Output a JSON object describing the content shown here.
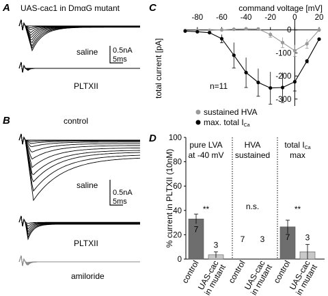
{
  "panels": {
    "a": {
      "letter": "A",
      "title": "UAS-cac1 in DmαG mutant",
      "saline_label": "saline",
      "pltx_label": "PLTXII",
      "scale_current": "0.5nA",
      "scale_time": "5ms"
    },
    "b": {
      "letter": "B",
      "title": "control",
      "saline_label": "saline",
      "pltx_label": "PLTXII",
      "amiloride_label": "amiloride",
      "scale_current": "0.5nA",
      "scale_time": "5ms"
    },
    "c": {
      "letter": "C",
      "n_label": "n=11"
    },
    "d": {
      "letter": "D"
    }
  },
  "colors": {
    "dark_bar": "#6e6e6e",
    "light_bar": "#c8c8c8",
    "grey_series": "#999999",
    "black_series": "#000000"
  },
  "chart_data": [
    {
      "type": "line",
      "xlabel": "command voltage [mV]",
      "ylabel": "total current [pA]",
      "xlim": [
        -90,
        20
      ],
      "ylim": [
        -330,
        20
      ],
      "xticks": [
        -80,
        -60,
        -40,
        -20,
        0,
        20
      ],
      "yticks": [
        0,
        -100,
        -200,
        -300
      ],
      "legend_position": "bottom-left",
      "series": [
        {
          "name": "sustained HVA",
          "x": [
            -90,
            -80,
            -70,
            -60,
            -50,
            -40,
            -30,
            -20,
            -10,
            0,
            10,
            20
          ],
          "y": [
            -2,
            -2,
            -2,
            0,
            3,
            5,
            4,
            -20,
            -55,
            -90,
            -60,
            0
          ],
          "err": [
            0,
            0,
            0,
            0,
            0,
            6,
            6,
            12,
            22,
            25,
            20,
            0
          ]
        },
        {
          "name": "max. total I",
          "name_subscript": "Ca",
          "x": [
            -90,
            -80,
            -70,
            -60,
            -50,
            -40,
            -30,
            -20,
            -10,
            0,
            10,
            20
          ],
          "y": [
            -5,
            -8,
            -12,
            -38,
            -110,
            -185,
            -228,
            -252,
            -250,
            -225,
            -135,
            -40
          ],
          "err": [
            0,
            0,
            0,
            18,
            55,
            65,
            60,
            70,
            65,
            40,
            8,
            0
          ]
        }
      ]
    },
    {
      "type": "bar",
      "ylabel": "% current in PLTXII (10nM)",
      "ylim": [
        0,
        100
      ],
      "yticks": [
        0,
        20,
        40,
        60,
        80,
        100
      ],
      "categories": [
        "control",
        "UAS-cac\nin mutant"
      ],
      "groups": [
        {
          "title_lines": [
            "pure LVA",
            "at -40 mV"
          ],
          "values": [
            33,
            3.5
          ],
          "err": [
            4,
            2.5
          ],
          "n": [
            "7",
            "3"
          ],
          "signif": "**"
        },
        {
          "title_lines": [
            "HVA",
            "sustained"
          ],
          "values": [
            0,
            0
          ],
          "err": [
            0,
            0
          ],
          "n": [
            "7",
            "3"
          ],
          "signif": "n.s."
        },
        {
          "title_main": "total I",
          "title_sub": "Ca",
          "title_line2": "max",
          "values": [
            26.5,
            6
          ],
          "err": [
            5.5,
            6
          ],
          "n": [
            "7",
            "3"
          ],
          "signif": "**"
        }
      ]
    }
  ]
}
